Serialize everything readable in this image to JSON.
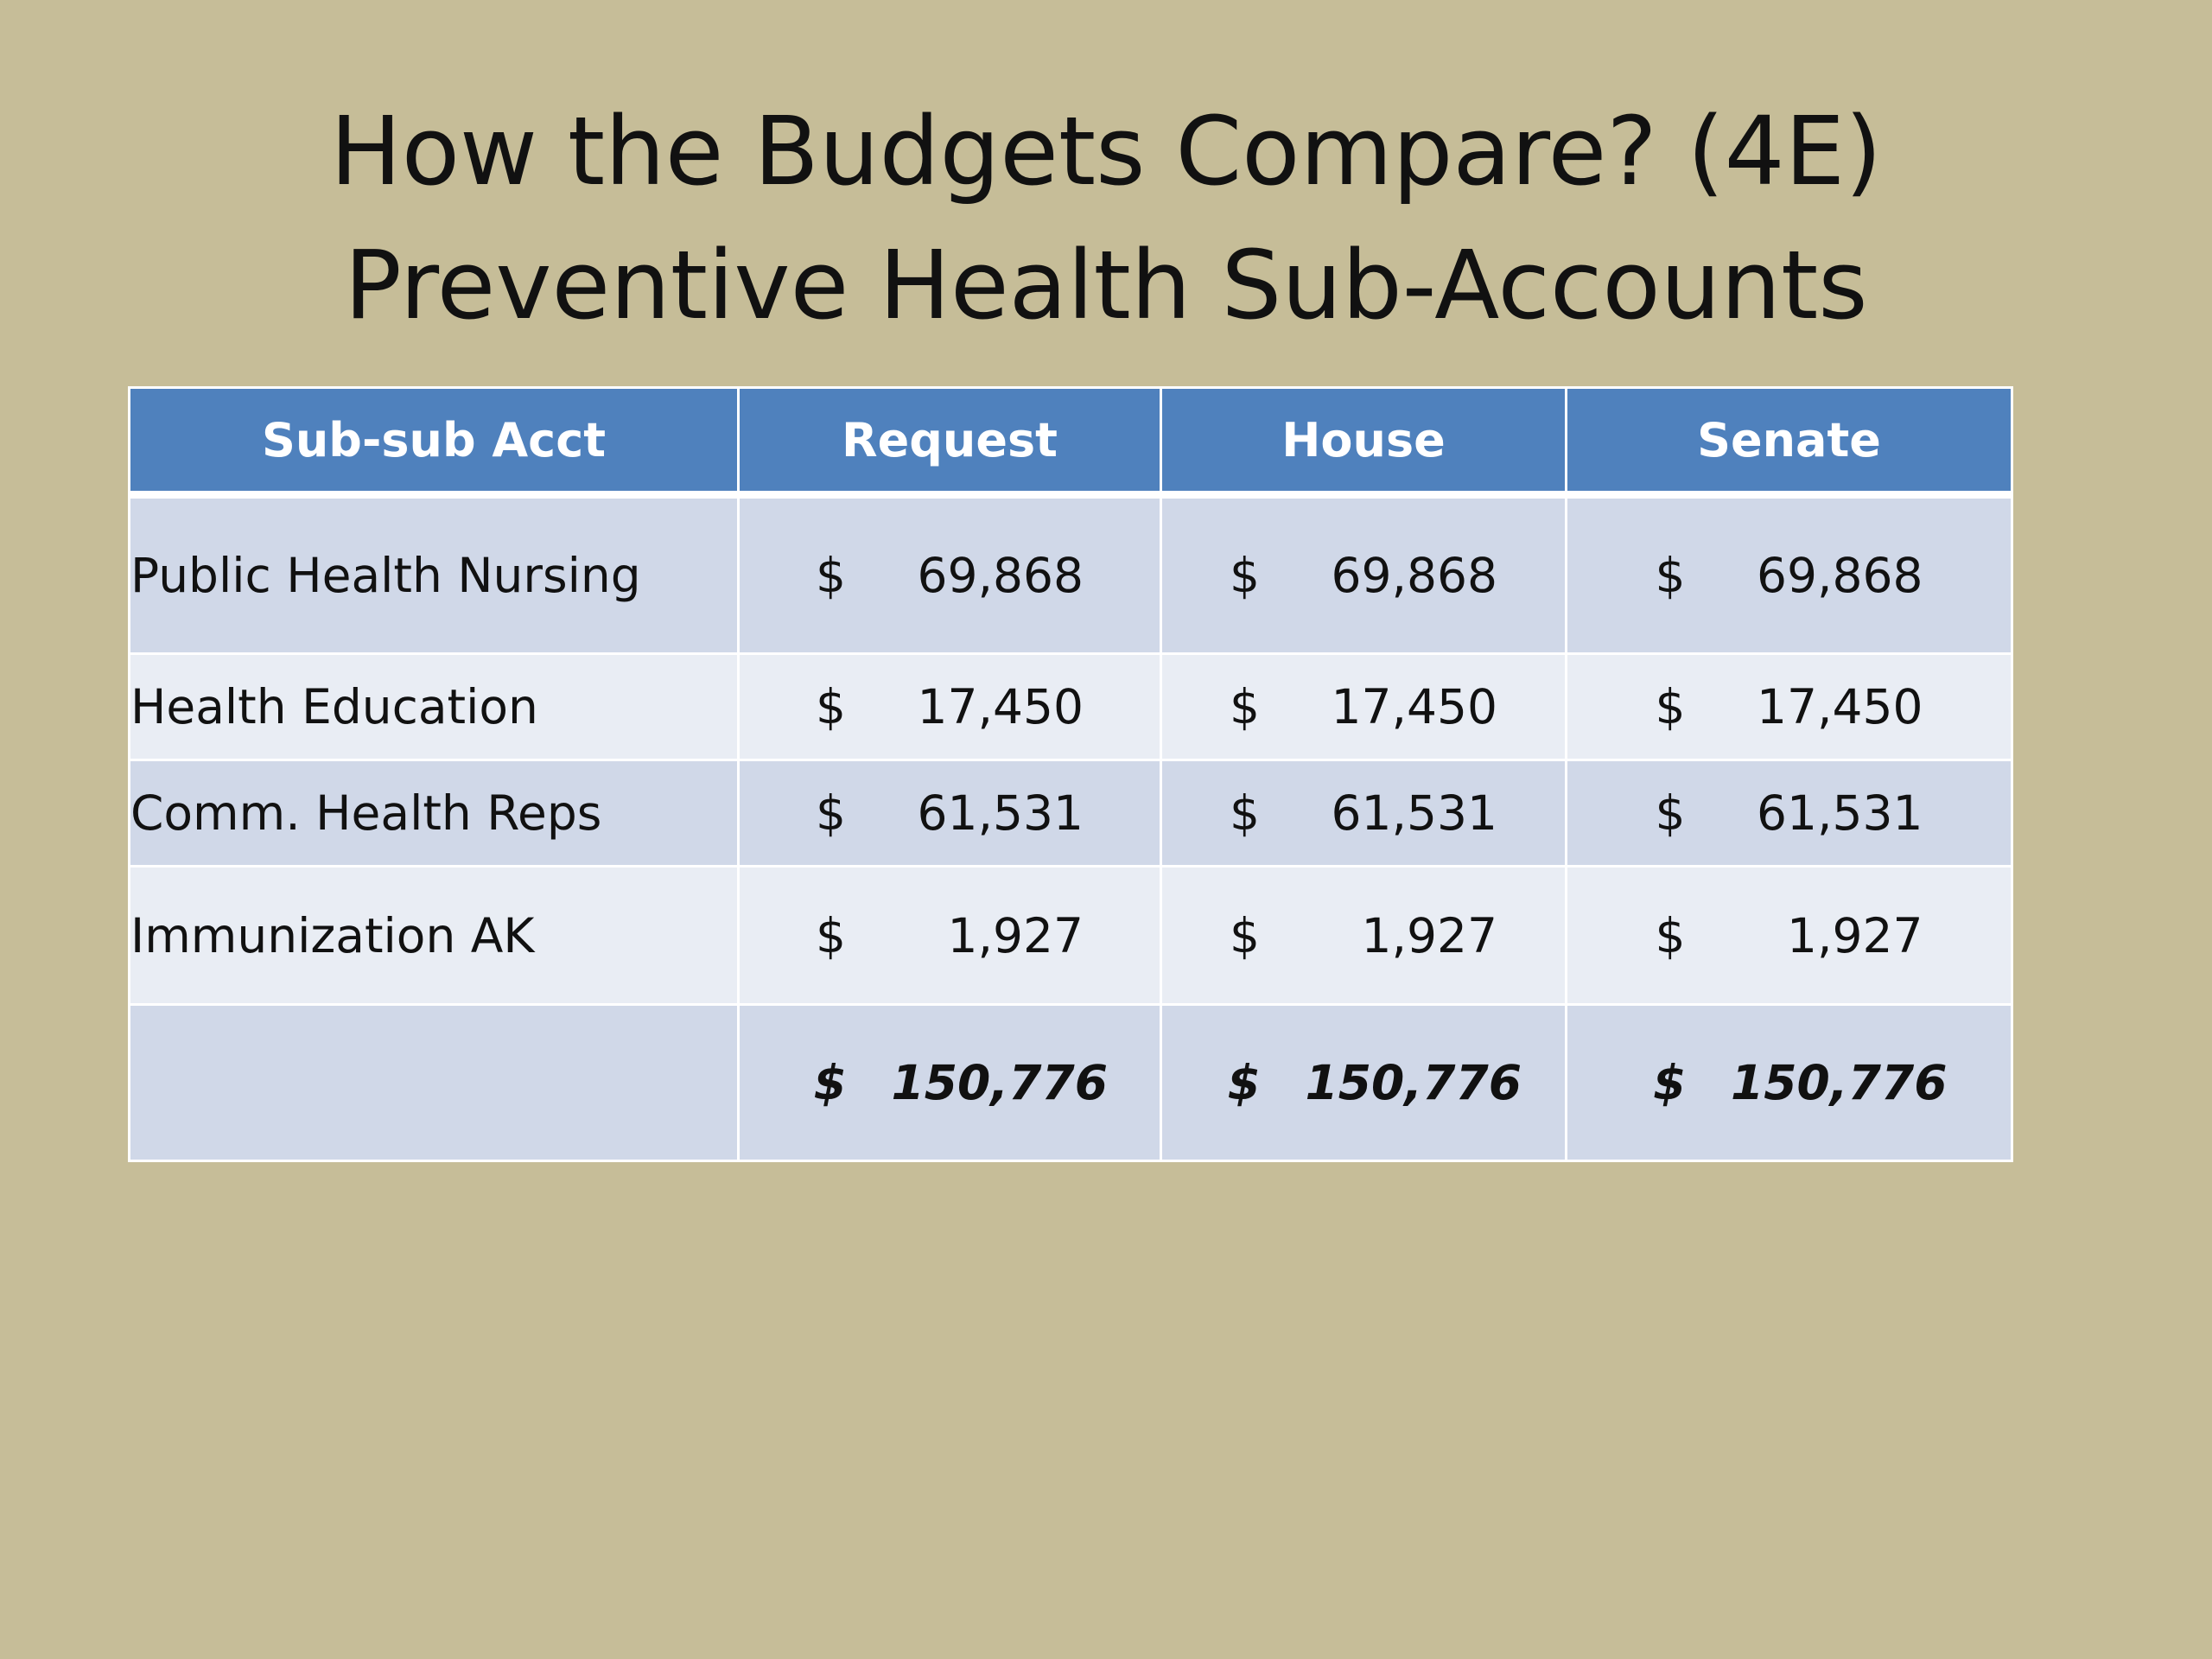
{
  "title": {
    "line1": "How the Budgets Compare? (4E)",
    "line2": "Preventive Health Sub-Accounts"
  },
  "table": {
    "headers": [
      "Sub-sub Acct",
      "Request",
      "House",
      "Senate"
    ],
    "rows": [
      {
        "name": "Public Health Nursing",
        "request": {
          "currency": "$",
          "amount": "69,868"
        },
        "house": {
          "currency": "$",
          "amount": "69,868"
        },
        "senate": {
          "currency": "$",
          "amount": "69,868"
        }
      },
      {
        "name": "Health Education",
        "request": {
          "currency": "$",
          "amount": "17,450"
        },
        "house": {
          "currency": "$",
          "amount": "17,450"
        },
        "senate": {
          "currency": "$",
          "amount": "17,450"
        }
      },
      {
        "name": "Comm. Health Reps",
        "request": {
          "currency": "$",
          "amount": "61,531"
        },
        "house": {
          "currency": "$",
          "amount": "61,531"
        },
        "senate": {
          "currency": "$",
          "amount": "61,531"
        }
      },
      {
        "name": "Immunization AK",
        "request": {
          "currency": "$",
          "amount": "1,927"
        },
        "house": {
          "currency": "$",
          "amount": "1,927"
        },
        "senate": {
          "currency": "$",
          "amount": "1,927"
        }
      }
    ],
    "total": {
      "name": "",
      "request": {
        "currency": "$",
        "amount": "150,776"
      },
      "house": {
        "currency": "$",
        "amount": "150,776"
      },
      "senate": {
        "currency": "$",
        "amount": "150,776"
      }
    }
  },
  "colors": {
    "background": "#c6bd98",
    "header": "#4f81bd",
    "row_dark": "#d0d8e8",
    "row_light": "#e9edf4"
  }
}
